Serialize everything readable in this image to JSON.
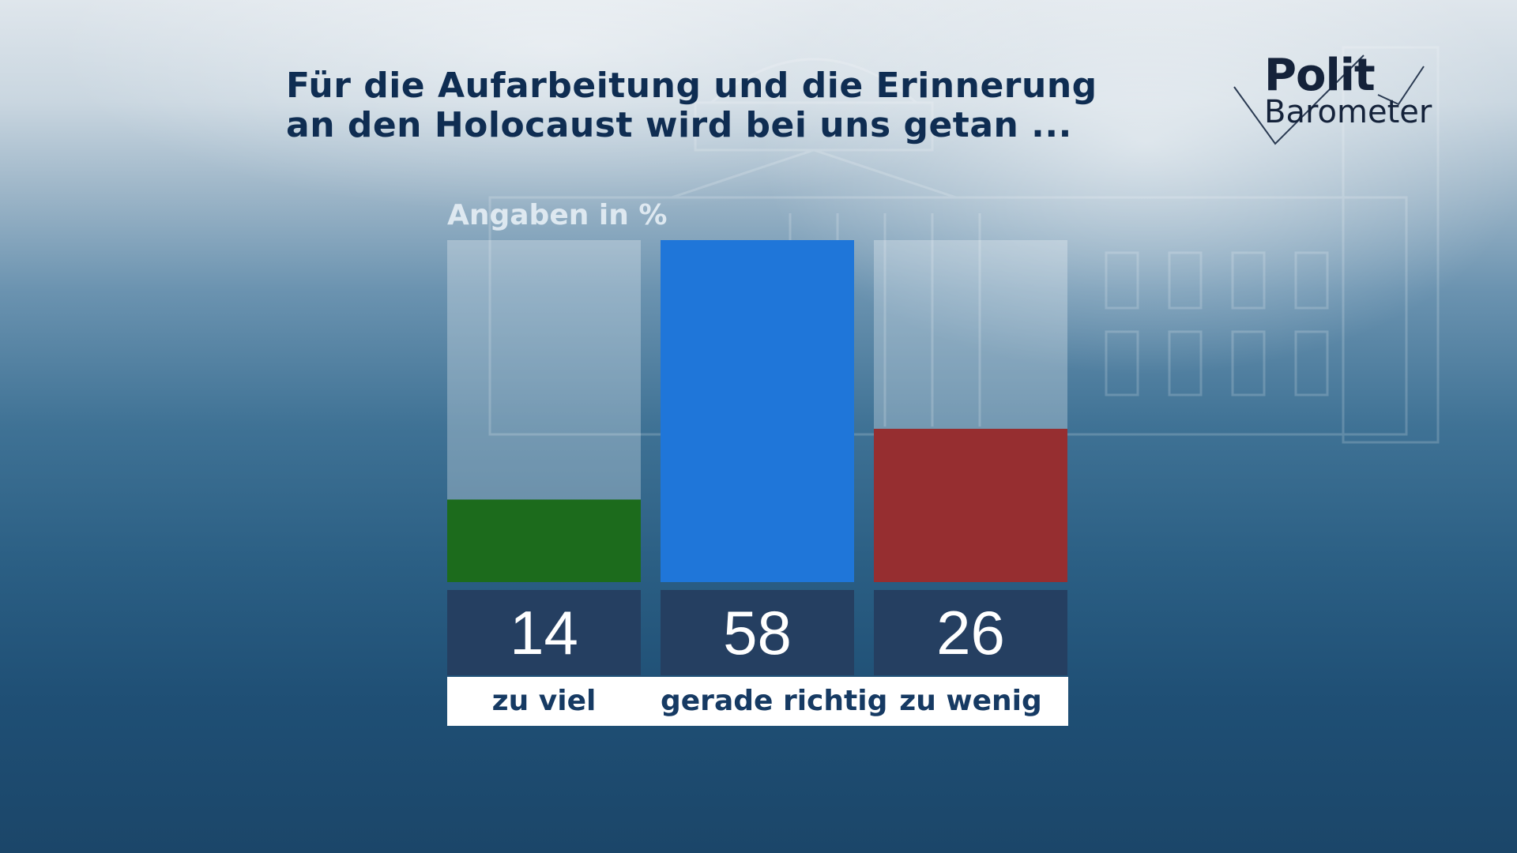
{
  "header": {
    "title_line1": "Für die Aufarbeitung und die Erinnerung",
    "title_line2": "an den Holocaust wird bei uns getan ..."
  },
  "logo": {
    "line1": "Polit",
    "line2": "Barometer"
  },
  "chart_data": {
    "type": "bar",
    "unit_label": "Angaben in %",
    "categories": [
      "zu viel",
      "gerade richtig",
      "zu wenig"
    ],
    "values": [
      14,
      58,
      26
    ],
    "value_labels": [
      "14",
      "58",
      "26"
    ],
    "colors": [
      "#1c6b1c",
      "#1f76d9",
      "#962e30"
    ],
    "ylim": [
      0,
      58
    ],
    "grid": false,
    "legend": "none"
  },
  "colors": {
    "title": "#0f2d52",
    "value_box": "#253f61",
    "track": "rgba(255,255,255,0.28)"
  }
}
